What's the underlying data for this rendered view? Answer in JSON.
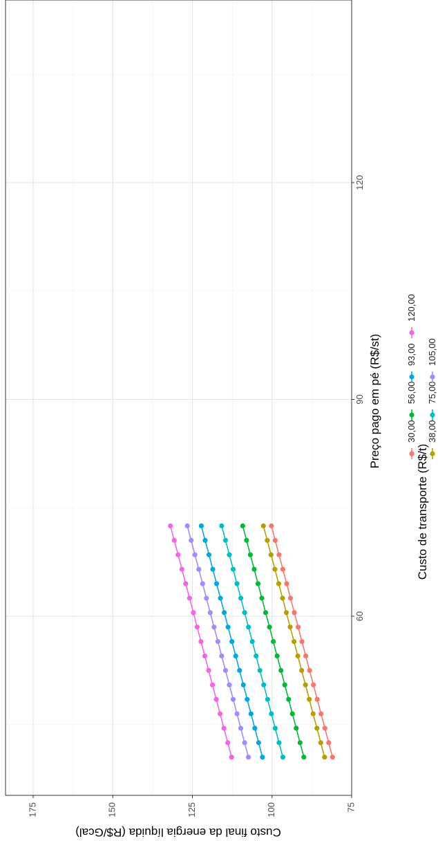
{
  "chart_data": {
    "type": "line",
    "orientation": "rotated-90-clockwise",
    "xlabel": "Preço pago em pé (R$/st)",
    "ylabel": "Custo final da energia líquida (R$/Gcal)",
    "xlim": [
      40.0,
      150.0
    ],
    "ylim": [
      75,
      185
    ],
    "x_ticks": [
      "60",
      "90",
      "120"
    ],
    "y_ticks": [
      "75",
      "100",
      "125",
      "150",
      "175"
    ],
    "grid": true,
    "legend_title": "Custo de transporte (R$/t)",
    "legend_position": "bottom",
    "x": [
      40.5,
      42.5,
      44.5,
      46.5,
      48.5,
      50.5,
      52.5,
      54.5,
      56.5,
      58.5,
      60.5,
      62.5,
      64.5,
      66.5,
      68.5,
      70.5,
      72.5
    ],
    "series": [
      {
        "name": "30,00",
        "color": "#F8766D",
        "values": [
          81.0,
          82.2,
          83.4,
          84.6,
          85.8,
          87.0,
          88.2,
          89.4,
          90.6,
          91.8,
          93.0,
          94.2,
          95.4,
          96.6,
          97.8,
          99.0,
          100.2
        ]
      },
      {
        "name": "38,00",
        "color": "#B79F00",
        "values": [
          83.5,
          84.7,
          85.9,
          87.1,
          88.3,
          89.5,
          90.7,
          91.9,
          93.1,
          94.3,
          95.5,
          96.7,
          97.9,
          99.1,
          100.3,
          101.5,
          102.7
        ]
      },
      {
        "name": "56,00",
        "color": "#00BA38",
        "values": [
          90.0,
          91.2,
          92.4,
          93.6,
          94.8,
          96.0,
          97.2,
          98.4,
          99.6,
          100.8,
          102.0,
          103.2,
          104.4,
          105.6,
          106.8,
          108.0,
          109.2
        ]
      },
      {
        "name": "75,00",
        "color": "#00BFC4",
        "values": [
          96.6,
          97.8,
          99.0,
          100.2,
          101.4,
          102.6,
          103.8,
          105.0,
          106.2,
          107.4,
          108.6,
          109.8,
          111.0,
          112.2,
          113.4,
          114.6,
          115.8
        ]
      },
      {
        "name": "93,00",
        "color": "#00A9E0",
        "values": [
          103.0,
          104.2,
          105.4,
          106.6,
          107.8,
          109.0,
          110.2,
          111.4,
          112.6,
          113.8,
          115.0,
          116.2,
          117.4,
          118.6,
          119.8,
          121.0,
          122.2
        ]
      },
      {
        "name": "105,00",
        "color": "#A58AFF",
        "values": [
          107.4,
          108.6,
          109.8,
          111.0,
          112.2,
          113.4,
          114.6,
          115.8,
          117.0,
          118.2,
          119.4,
          120.6,
          121.8,
          123.0,
          124.2,
          125.4,
          126.6
        ]
      },
      {
        "name": "120,00",
        "color": "#F564E3",
        "values": [
          112.7,
          113.9,
          115.1,
          116.3,
          117.5,
          118.7,
          119.9,
          121.1,
          122.3,
          123.5,
          124.7,
          125.9,
          127.1,
          128.3,
          129.5,
          130.7,
          131.9
        ]
      }
    ],
    "legend_order": [
      "30,00",
      "56,00",
      "93,00",
      "120,00",
      "38,00",
      "75,00",
      "105,00"
    ]
  }
}
